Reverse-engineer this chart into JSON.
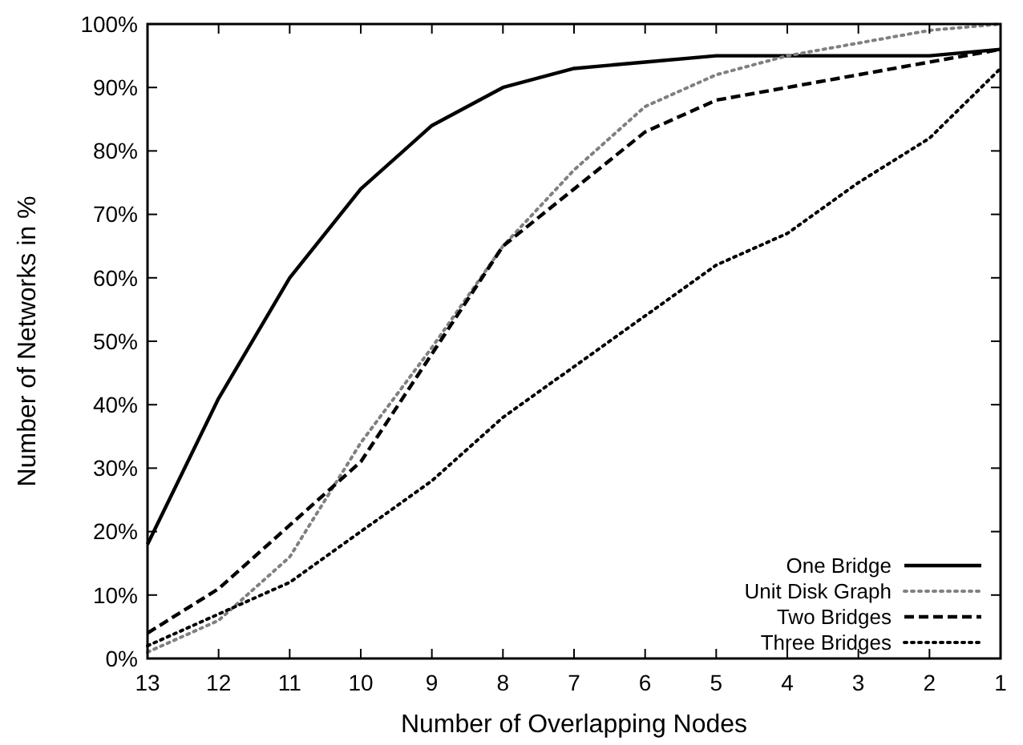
{
  "chart_data": {
    "type": "line",
    "xlabel": "Number of Overlapping Nodes",
    "ylabel": "Number of Networks in %",
    "x": [
      13,
      12,
      11,
      10,
      9,
      8,
      7,
      6,
      5,
      4,
      3,
      2,
      1
    ],
    "xlim": [
      13,
      1
    ],
    "xticks": [
      13,
      12,
      11,
      10,
      9,
      8,
      7,
      6,
      5,
      4,
      3,
      2,
      1
    ],
    "ylim": [
      0,
      100
    ],
    "yticks": [
      {
        "value": 0,
        "label": "0%"
      },
      {
        "value": 10,
        "label": "10%"
      },
      {
        "value": 20,
        "label": "20%"
      },
      {
        "value": 30,
        "label": "30%"
      },
      {
        "value": 40,
        "label": "40%"
      },
      {
        "value": 50,
        "label": "50%"
      },
      {
        "value": 60,
        "label": "60%"
      },
      {
        "value": 70,
        "label": "70%"
      },
      {
        "value": 80,
        "label": "80%"
      },
      {
        "value": 90,
        "label": "90%"
      },
      {
        "value": 100,
        "label": "100%"
      }
    ],
    "legend": "bottom right",
    "grid": false,
    "series": [
      {
        "name": "One Bridge",
        "color": "#000000",
        "line_style": "solid",
        "values": [
          18,
          41,
          60,
          74,
          84,
          90,
          93,
          94,
          95,
          95,
          95,
          95,
          96
        ]
      },
      {
        "name": "Unit Disk Graph",
        "color": "#808080",
        "line_style": "dotted",
        "values": [
          1,
          6,
          16,
          34,
          49,
          65,
          77,
          87,
          92,
          95,
          97,
          99,
          100
        ]
      },
      {
        "name": "Two Bridges",
        "color": "#000000",
        "line_style": "dashed",
        "values": [
          4,
          11,
          21,
          31,
          48,
          65,
          74,
          83,
          88,
          90,
          92,
          94,
          96
        ]
      },
      {
        "name": "Three Bridges",
        "color": "#000000",
        "line_style": "dotted",
        "values": [
          2,
          7,
          12,
          20,
          28,
          38,
          46,
          54,
          62,
          67,
          75,
          82,
          93
        ]
      }
    ]
  }
}
